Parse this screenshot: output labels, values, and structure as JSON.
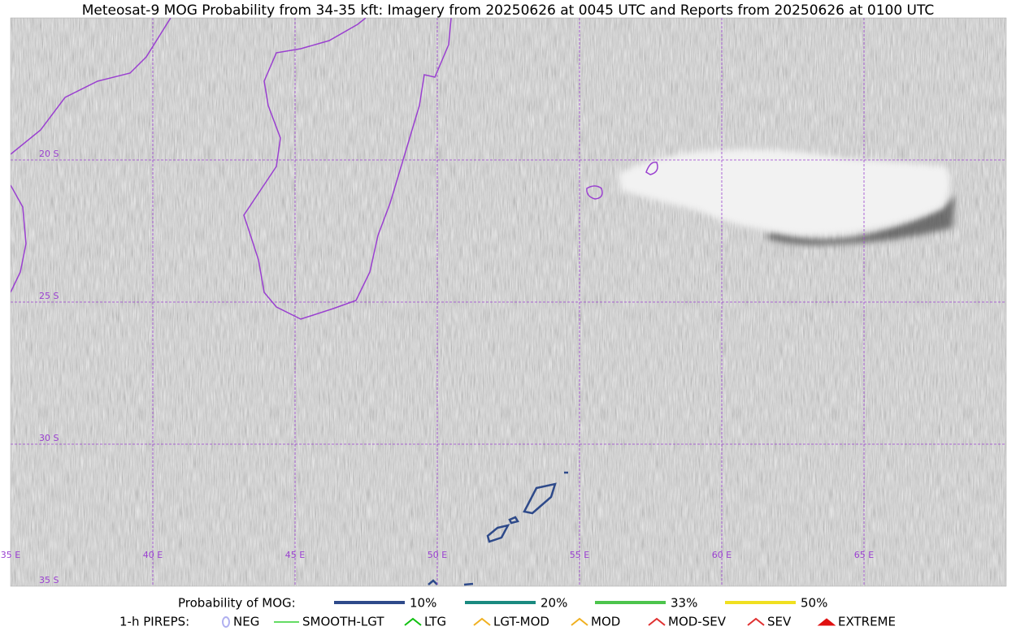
{
  "title": "Meteosat-9 MOG Probability from 34-35 kft: Imagery from 20250626 at 0045 UTC and Reports from 20250626 at 0100 UTC",
  "lat_labels": [
    "20 S",
    "25 S",
    "30 S",
    "35 S"
  ],
  "lon_labels": [
    "35 E",
    "40 E",
    "45 E",
    "50 E",
    "55 E",
    "60 E",
    "65 E"
  ],
  "probability_legend": {
    "title": "Probability of MOG:",
    "entries": [
      {
        "label": "10%",
        "color": "#2e4a8a"
      },
      {
        "label": "20%",
        "color": "#1a8a80"
      },
      {
        "label": "33%",
        "color": "#4cc44c"
      },
      {
        "label": "50%",
        "color": "#f0e020"
      }
    ]
  },
  "pirep_legend": {
    "title": "1-h PIREPS:",
    "entries": [
      {
        "label": "NEG",
        "color": "#b0b0f0"
      },
      {
        "label": "SMOOTH-LGT",
        "color": "#30d030"
      },
      {
        "label": "LTG",
        "color": "#10c010"
      },
      {
        "label": "LGT-MOD",
        "color": "#f0b020"
      },
      {
        "label": "MOD",
        "color": "#f0b020"
      },
      {
        "label": "MOD-SEV",
        "color": "#e03030"
      },
      {
        "label": "SEV",
        "color": "#e03030"
      },
      {
        "label": "EXTREME",
        "color": "#e01010"
      }
    ]
  }
}
